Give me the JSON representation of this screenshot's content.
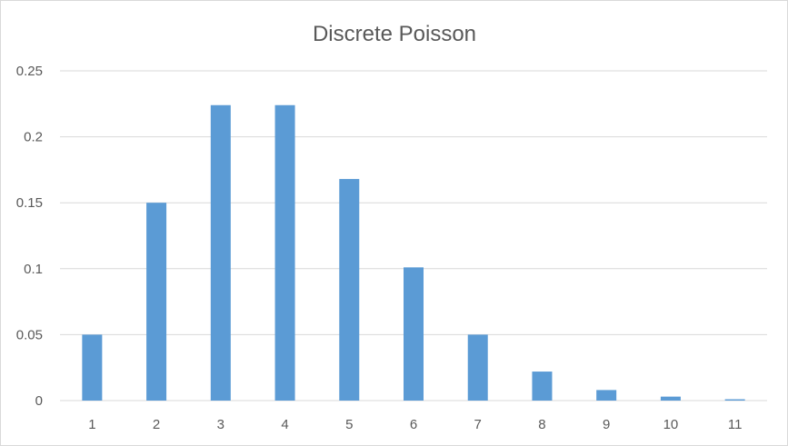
{
  "chart_data": {
    "type": "bar",
    "title": "Discrete Poisson",
    "xlabel": "",
    "ylabel": "",
    "categories": [
      "1",
      "2",
      "3",
      "4",
      "5",
      "6",
      "7",
      "8",
      "9",
      "10",
      "11"
    ],
    "values": [
      0.05,
      0.15,
      0.224,
      0.224,
      0.168,
      0.101,
      0.05,
      0.022,
      0.008,
      0.003,
      0.001
    ],
    "ylim": [
      0,
      0.25
    ],
    "yticks": [
      "0",
      "0.05",
      "0.1",
      "0.15",
      "0.2",
      "0.25"
    ],
    "grid": true,
    "legend": "none",
    "bar_color": "#5b9bd5",
    "grid_color": "#d9d9d9",
    "text_color": "#595959"
  }
}
